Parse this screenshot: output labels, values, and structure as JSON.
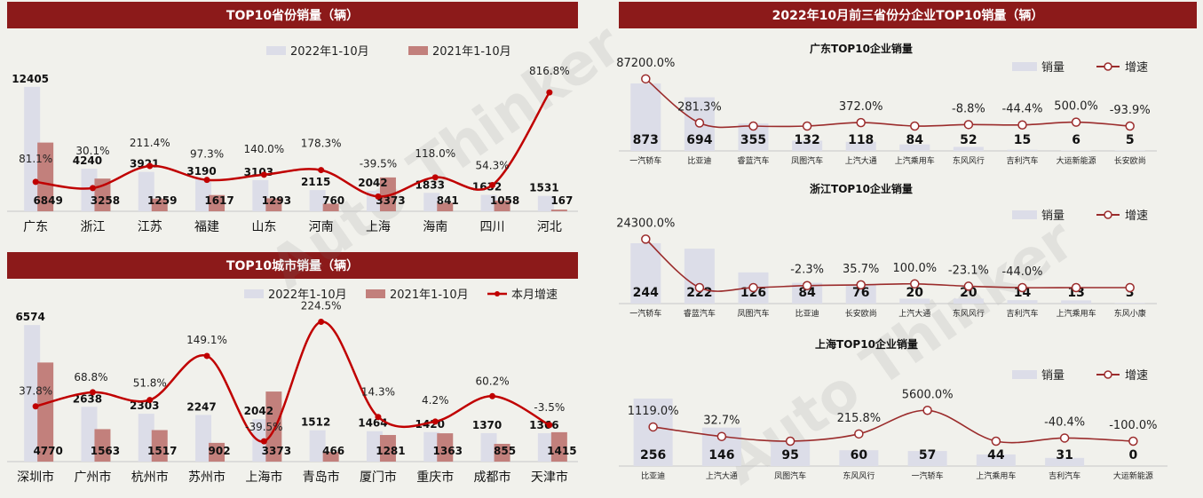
{
  "left_panel": {
    "provinces": {
      "banner": "TOP10省份销量（辆）",
      "legend": [
        "2022年1-10月",
        "2021年1-10月"
      ]
    },
    "cities": {
      "banner": "TOP10城市销量（辆）",
      "legend": [
        "2022年1-10月",
        "2021年1-10月",
        "本月增速"
      ]
    }
  },
  "right_panel": {
    "banner": "2022年10月前三省份分企业TOP10销量（辆）",
    "legend": [
      "销量",
      "增速"
    ]
  },
  "colors": {
    "banner": "#8c1a1a",
    "bar_2022": "#dcdde8",
    "bar_2021": "#c2807c",
    "growth_line_left": "#c00000",
    "growth_line_right": "#9b2c2c"
  },
  "chart_data": [
    {
      "type": "bar",
      "title": "TOP10省份销量（辆）",
      "categories": [
        "广东",
        "浙江",
        "江苏",
        "福建",
        "山东",
        "河南",
        "上海",
        "海南",
        "四川",
        "河北"
      ],
      "series": [
        {
          "name": "2022年1-10月",
          "values": [
            12405,
            4240,
            3921,
            3190,
            3103,
            2115,
            2042,
            1833,
            1632,
            1531
          ],
          "value_labels": [
            "12405",
            "4240",
            "3921",
            "3190",
            "3103",
            "2115",
            "2042",
            "1833",
            "1632",
            "1531"
          ]
        },
        {
          "name": "2021年1-10月",
          "values": [
            6849,
            3258,
            1259,
            1617,
            1293,
            760,
            3373,
            841,
            1058,
            167
          ],
          "value_labels": [
            "6849",
            "3258",
            "1259",
            "1617",
            "1293",
            "760",
            "3373",
            "841",
            "1058",
            "167"
          ]
        },
        {
          "name": "",
          "type": "line",
          "values": [
            81.1,
            30.1,
            211.4,
            97.3,
            140.0,
            178.3,
            -39.5,
            118.0,
            54.3,
            816.8
          ],
          "value_labels": [
            "81.1%",
            "30.1%",
            "211.4%",
            "97.3%",
            "140.0%",
            "178.3%",
            "-39.5%",
            "118.0%",
            "54.3%",
            "816.8%"
          ]
        }
      ]
    },
    {
      "type": "bar",
      "title": "TOP10城市销量（辆）",
      "categories": [
        "深圳市",
        "广州市",
        "杭州市",
        "苏州市",
        "上海市",
        "青岛市",
        "厦门市",
        "重庆市",
        "成都市",
        "天津市"
      ],
      "series": [
        {
          "name": "2022年1-10月",
          "values": [
            6574,
            2638,
            2303,
            2247,
            2042,
            1512,
            1464,
            1420,
            1370,
            1366
          ],
          "value_labels": [
            "6574",
            "2638",
            "2303",
            "2247",
            "2042",
            "1512",
            "1464",
            "1420",
            "1370",
            "1366"
          ]
        },
        {
          "name": "2021年1-10月",
          "values": [
            4770,
            1563,
            1517,
            902,
            3373,
            466,
            1281,
            1363,
            855,
            1415
          ],
          "value_labels": [
            "4770",
            "1563",
            "1517",
            "902",
            "3373",
            "466",
            "1281",
            "1363",
            "855",
            "1415"
          ]
        },
        {
          "name": "本月增速",
          "type": "line",
          "values": [
            37.8,
            68.8,
            51.8,
            149.1,
            -39.5,
            224.5,
            14.3,
            4.2,
            60.2,
            -3.5
          ],
          "value_labels": [
            "37.8%",
            "68.8%",
            "51.8%",
            "149.1%",
            "-39.5%",
            "224.5%",
            "14.3%",
            "4.2%",
            "60.2%",
            "-3.5%"
          ]
        }
      ]
    },
    {
      "type": "bar",
      "title": "广东TOP10企业销量",
      "categories": [
        "一汽轿车",
        "比亚迪",
        "睿蓝汽车",
        "凤图汽车",
        "上汽大通",
        "上汽乘用车",
        "东风风行",
        "吉利汽车",
        "大运新能源",
        "长安欧尚"
      ],
      "series": [
        {
          "name": "销量",
          "values": [
            873,
            694,
            355,
            132,
            118,
            84,
            52,
            15,
            6,
            5
          ],
          "value_labels": [
            "873",
            "694",
            "355",
            "132",
            "118",
            "84",
            "52",
            "15",
            "6",
            "5"
          ]
        },
        {
          "name": "增速",
          "type": "line",
          "values": [
            87200.0,
            281.3,
            null,
            null,
            372.0,
            null,
            -8.8,
            -44.4,
            500.0,
            -93.9
          ],
          "value_labels": [
            "87200.0%",
            "281.3%",
            "",
            "",
            "372.0%",
            "",
            "-8.8%",
            "-44.4%",
            "500.0%",
            "-93.9%"
          ]
        }
      ]
    },
    {
      "type": "bar",
      "title": "浙江TOP10企业销量",
      "categories": [
        "一汽轿车",
        "睿蓝汽车",
        "凤图汽车",
        "比亚迪",
        "长安欧尚",
        "上汽大通",
        "东风风行",
        "吉利汽车",
        "上汽乘用车",
        "东风小康"
      ],
      "series": [
        {
          "name": "销量",
          "values": [
            244,
            222,
            126,
            84,
            76,
            20,
            20,
            14,
            13,
            3
          ],
          "value_labels": [
            "244",
            "222",
            "126",
            "84",
            "76",
            "20",
            "20",
            "14",
            "13",
            "3"
          ]
        },
        {
          "name": "增速",
          "type": "line",
          "values": [
            24300.0,
            null,
            null,
            -2.3,
            35.7,
            100.0,
            -23.1,
            -44.0,
            null,
            null
          ],
          "value_labels": [
            "24300.0%",
            "",
            "",
            "-2.3%",
            "35.7%",
            "100.0%",
            "-23.1%",
            "-44.0%",
            "",
            ""
          ]
        }
      ]
    },
    {
      "type": "bar",
      "title": "上海TOP10企业销量",
      "categories": [
        "比亚迪",
        "上汽大通",
        "凤图汽车",
        "东风风行",
        "一汽轿车",
        "上汽乘用车",
        "吉利汽车",
        "大运新能源"
      ],
      "series": [
        {
          "name": "销量",
          "values": [
            256,
            146,
            95,
            60,
            57,
            44,
            31,
            0
          ],
          "value_labels": [
            "256",
            "146",
            "95",
            "60",
            "57",
            "44",
            "31",
            "0"
          ]
        },
        {
          "name": "增速",
          "type": "line",
          "values": [
            1119.0,
            32.7,
            null,
            215.8,
            5600.0,
            null,
            -40.4,
            -100.0
          ],
          "value_labels": [
            "1119.0%",
            "32.7%",
            "",
            "215.8%",
            "5600.0%",
            "",
            "-40.4%",
            "-100.0%"
          ]
        }
      ]
    }
  ]
}
